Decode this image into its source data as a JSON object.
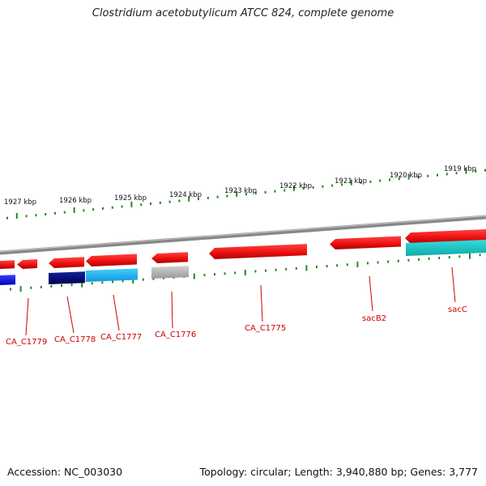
{
  "title": "Clostridium acetobutylicum ATCC 824, complete genome",
  "accession_text": "Accession: NC_003030",
  "summary_text": "Topology: circular; Length: 3,940,880 bp; Genes: 3,777",
  "scale_labels": [
    "1927 kbp",
    "1926 kbp",
    "1925 kbp",
    "1924 kbp",
    "1923 kbp",
    "1922 kbp",
    "1921 kbp",
    "1920 kbp",
    "1919 kbp"
  ],
  "gene_labels": [
    "CA_C1779",
    "CA_C1778",
    "CA_C1777",
    "CA_C1776",
    "CA_C1775",
    "sacB2",
    "sacC"
  ],
  "colors": {
    "backbone": "#888888",
    "forward_gene": "#ee1111",
    "tick": "#228822",
    "label": "#cc0000",
    "blue": "#1122ee",
    "navy": "#000077",
    "light_blue": "#22bbee",
    "cyan": "#22cccc",
    "gray": "#bbbbbb"
  }
}
